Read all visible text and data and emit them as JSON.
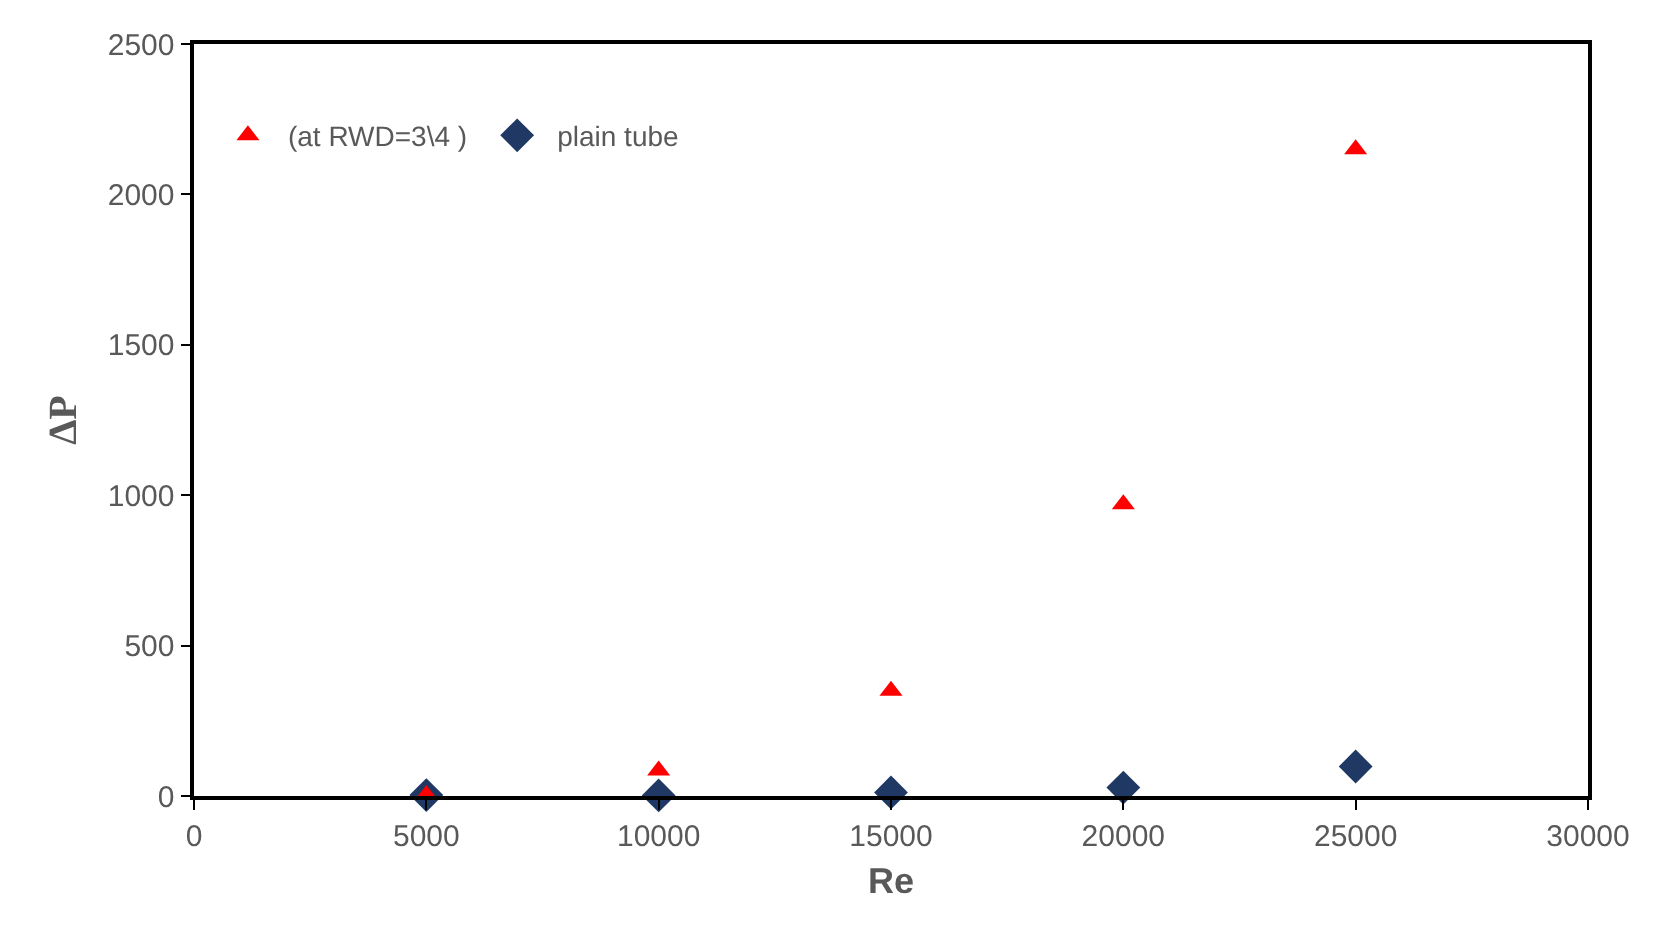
{
  "chart_data": {
    "type": "scatter",
    "xlabel": "Re",
    "ylabel": "ΔP",
    "x": [
      5000,
      10000,
      15000,
      20000,
      25000
    ],
    "series": [
      {
        "name": "(at RWD=3\\4 )",
        "color": "#ff0000",
        "marker": "triangle",
        "values": [
          3,
          85,
          350,
          970,
          2150
        ]
      },
      {
        "name": "plain tube",
        "color": "#1f3864",
        "marker": "diamond",
        "values": [
          3,
          2,
          12,
          28,
          98
        ]
      }
    ],
    "xlim": [
      0,
      30000
    ],
    "xticks": [
      0,
      5000,
      10000,
      15000,
      20000,
      25000,
      30000
    ],
    "ylim": [
      0,
      2500
    ],
    "yticks": [
      0,
      500,
      1000,
      1500,
      2000,
      2500
    ],
    "legend": "top left"
  }
}
